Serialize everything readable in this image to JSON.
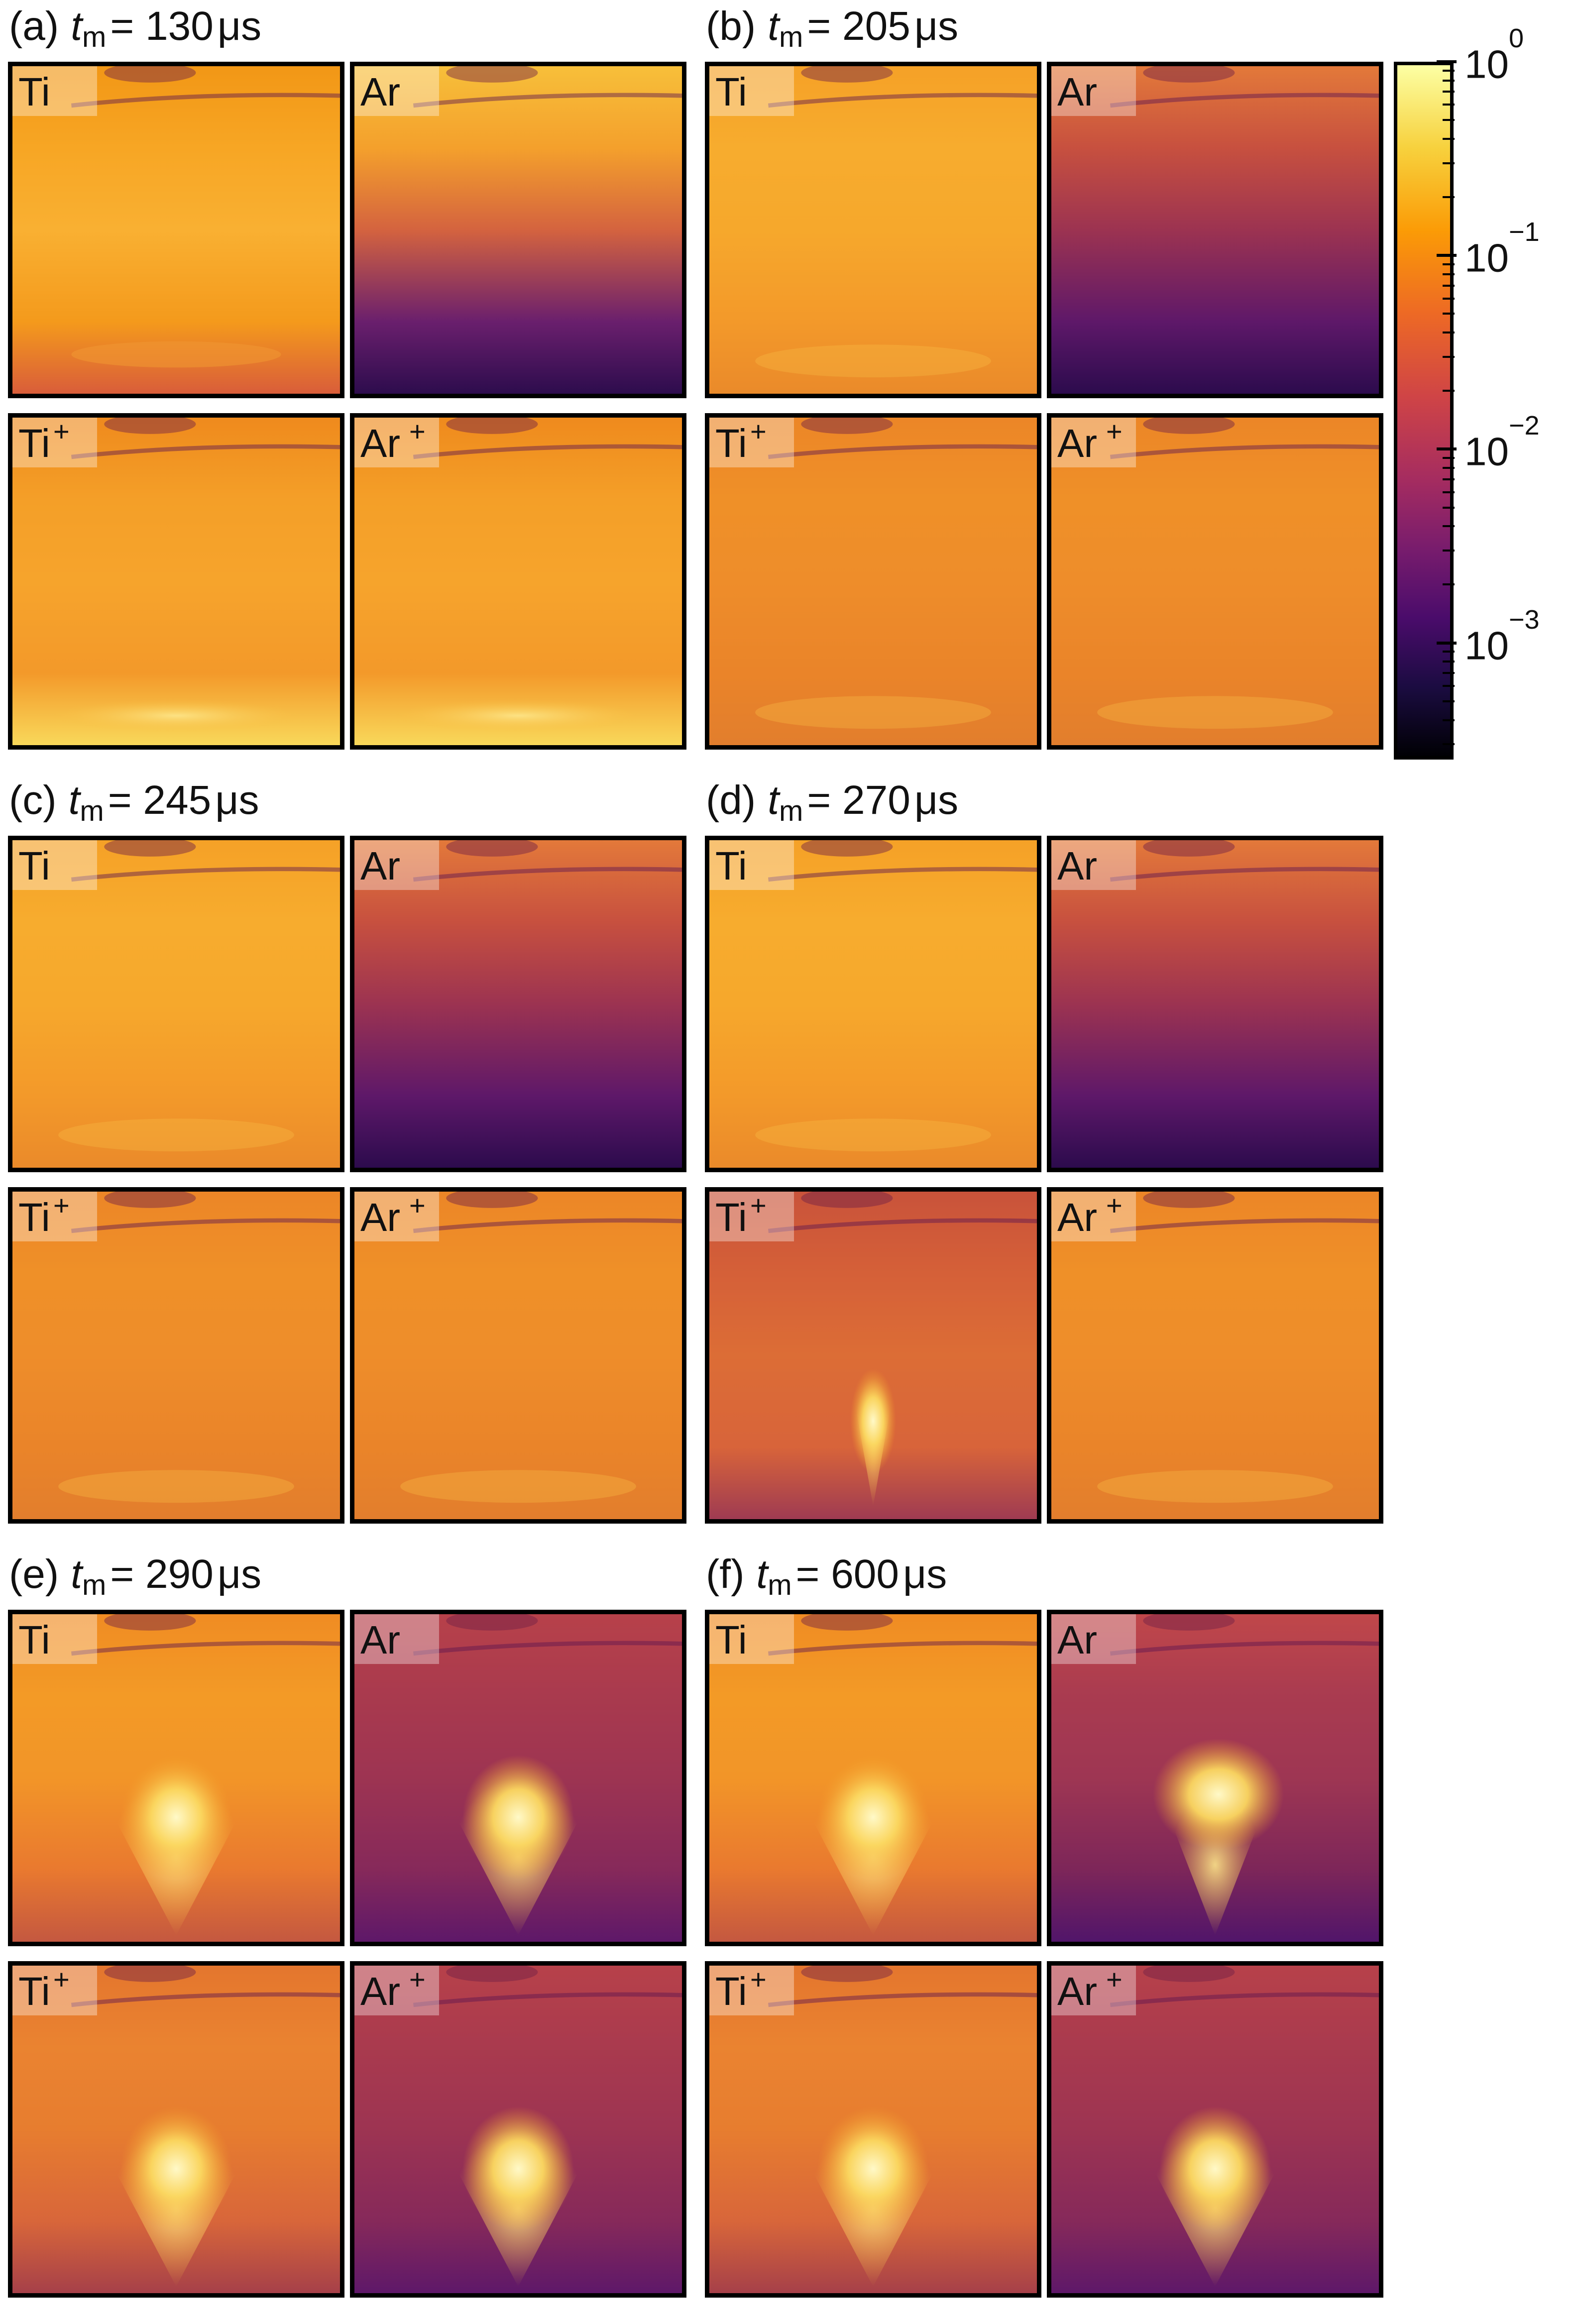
{
  "figure": {
    "groups": [
      {
        "id": "a",
        "letter": "(a)",
        "tm_value": "= 130",
        "unit": "μs",
        "panels": [
          {
            "species": "Ti",
            "charge": "",
            "style": "ti-130"
          },
          {
            "species": "Ar",
            "charge": "",
            "style": "ar-130"
          },
          {
            "species": "Ti",
            "charge": "+",
            "style": "tiion-130"
          },
          {
            "species": "Ar",
            "charge": "+",
            "style": "arion-130"
          }
        ]
      },
      {
        "id": "b",
        "letter": "(b)",
        "tm_value": "= 205",
        "unit": "μs",
        "panels": [
          {
            "species": "Ti",
            "charge": "",
            "style": "uniform-bright"
          },
          {
            "species": "Ar",
            "charge": "",
            "style": "ar-fading"
          },
          {
            "species": "Ti",
            "charge": "+",
            "style": "uniform-mid"
          },
          {
            "species": "Ar",
            "charge": "+",
            "style": "uniform-mid"
          }
        ]
      },
      {
        "id": "c",
        "letter": "(c)",
        "tm_value": "= 245",
        "unit": "μs",
        "panels": [
          {
            "species": "Ti",
            "charge": "",
            "style": "uniform-bright"
          },
          {
            "species": "Ar",
            "charge": "",
            "style": "ar-fading"
          },
          {
            "species": "Ti",
            "charge": "+",
            "style": "uniform-mid"
          },
          {
            "species": "Ar",
            "charge": "+",
            "style": "uniform-mid"
          }
        ]
      },
      {
        "id": "d",
        "letter": "(d)",
        "tm_value": "= 270",
        "unit": "μs",
        "panels": [
          {
            "species": "Ti",
            "charge": "",
            "style": "uniform-bright"
          },
          {
            "species": "Ar",
            "charge": "",
            "style": "ar-fading"
          },
          {
            "species": "Ti",
            "charge": "+",
            "style": "jet-narrow"
          },
          {
            "species": "Ar",
            "charge": "+",
            "style": "uniform-mid"
          }
        ]
      },
      {
        "id": "e",
        "letter": "(e)",
        "tm_value": "= 290",
        "unit": "μs",
        "panels": [
          {
            "species": "Ti",
            "charge": "",
            "style": "plume"
          },
          {
            "species": "Ar",
            "charge": "",
            "style": "plume-dark"
          },
          {
            "species": "Ti",
            "charge": "+",
            "style": "plume-ion"
          },
          {
            "species": "Ar",
            "charge": "+",
            "style": "plume-dark"
          }
        ]
      },
      {
        "id": "f",
        "letter": "(f)",
        "tm_value": "= 600",
        "unit": "μs",
        "panels": [
          {
            "species": "Ti",
            "charge": "",
            "style": "plume"
          },
          {
            "species": "Ar",
            "charge": "",
            "style": "plume-ball"
          },
          {
            "species": "Ti",
            "charge": "+",
            "style": "plume-ion"
          },
          {
            "species": "Ar",
            "charge": "+",
            "style": "plume-dark"
          }
        ]
      }
    ],
    "colorbar": {
      "scale": "log",
      "colormap": "inferno",
      "range": [
        0.00025,
        1
      ],
      "ticks": [
        {
          "base": "10",
          "exp": "0",
          "value": 1
        },
        {
          "base": "10",
          "exp": "−1",
          "value": 0.1
        },
        {
          "base": "10",
          "exp": "−2",
          "value": 0.01
        },
        {
          "base": "10",
          "exp": "−3",
          "value": 0.001
        }
      ]
    }
  }
}
